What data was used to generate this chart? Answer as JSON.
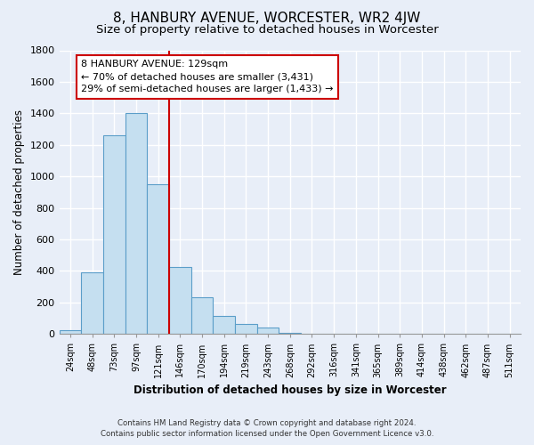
{
  "title": "8, HANBURY AVENUE, WORCESTER, WR2 4JW",
  "subtitle": "Size of property relative to detached houses in Worcester",
  "xlabel": "Distribution of detached houses by size in Worcester",
  "ylabel": "Number of detached properties",
  "bar_labels": [
    "24sqm",
    "48sqm",
    "73sqm",
    "97sqm",
    "121sqm",
    "146sqm",
    "170sqm",
    "194sqm",
    "219sqm",
    "243sqm",
    "268sqm",
    "292sqm",
    "316sqm",
    "341sqm",
    "365sqm",
    "389sqm",
    "414sqm",
    "438sqm",
    "462sqm",
    "487sqm",
    "511sqm"
  ],
  "bar_values": [
    25,
    390,
    1260,
    1400,
    950,
    425,
    235,
    115,
    65,
    40,
    5,
    2,
    1,
    0,
    0,
    0,
    0,
    0,
    0,
    0,
    0
  ],
  "bar_color": "#c5dff0",
  "bar_edge_color": "#5b9ec9",
  "vline_color": "#cc0000",
  "annotation_title": "8 HANBURY AVENUE: 129sqm",
  "annotation_line1": "← 70% of detached houses are smaller (3,431)",
  "annotation_line2": "29% of semi-detached houses are larger (1,433) →",
  "annotation_box_color": "#ffffff",
  "annotation_box_edge": "#cc0000",
  "ylim": [
    0,
    1800
  ],
  "yticks": [
    0,
    200,
    400,
    600,
    800,
    1000,
    1200,
    1400,
    1600,
    1800
  ],
  "footnote1": "Contains HM Land Registry data © Crown copyright and database right 2024.",
  "footnote2": "Contains public sector information licensed under the Open Government Licence v3.0.",
  "background_color": "#e8eef8",
  "plot_bg_color": "#e8eef8",
  "grid_color": "#ffffff",
  "title_fontsize": 11,
  "subtitle_fontsize": 9.5
}
